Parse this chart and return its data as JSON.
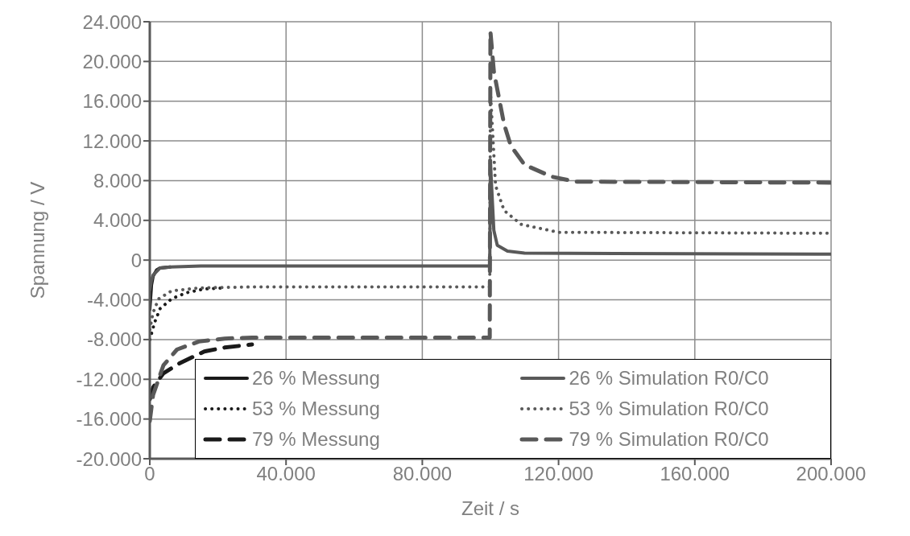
{
  "chart_data": {
    "type": "line",
    "xlabel": "Zeit / s",
    "ylabel": "Spannung / V",
    "xlim": [
      0,
      200000
    ],
    "ylim": [
      -20000,
      24000
    ],
    "xticks": [
      {
        "value": 0,
        "label": "0"
      },
      {
        "value": 40000,
        "label": "40.000"
      },
      {
        "value": 80000,
        "label": "80.000"
      },
      {
        "value": 120000,
        "label": "120.000"
      },
      {
        "value": 160000,
        "label": "160.000"
      },
      {
        "value": 200000,
        "label": "200.000"
      }
    ],
    "yticks": [
      {
        "value": -20000,
        "label": "-20.000"
      },
      {
        "value": -16000,
        "label": "-16.000"
      },
      {
        "value": -12000,
        "label": "-12.000"
      },
      {
        "value": -8000,
        "label": "-8.000"
      },
      {
        "value": -4000,
        "label": "-4.000"
      },
      {
        "value": 0,
        "label": "0"
      },
      {
        "value": 4000,
        "label": "4.000"
      },
      {
        "value": 8000,
        "label": "8.000"
      },
      {
        "value": 12000,
        "label": "12.000"
      },
      {
        "value": 16000,
        "label": "16.000"
      },
      {
        "value": 20000,
        "label": "20.000"
      },
      {
        "value": 24000,
        "label": "24.000"
      }
    ],
    "grid": true,
    "legend": "bottom right",
    "marker": "none",
    "series": [
      {
        "name": "26 % Messung",
        "color": "#1a1a1a",
        "line_style": "solid",
        "x": [
          0,
          500,
          1000,
          2000,
          3000,
          6000
        ],
        "values": [
          -5000,
          -2500,
          -1600,
          -1000,
          -800,
          -700
        ]
      },
      {
        "name": "53 % Messung",
        "color": "#1a1a1a",
        "line_style": "dotted",
        "x": [
          0,
          1400,
          3000,
          6400,
          10600,
          16000,
          22000
        ],
        "values": [
          -8000,
          -6300,
          -4900,
          -3900,
          -3300,
          -2900,
          -2800
        ]
      },
      {
        "name": "79 % Messung",
        "color": "#1a1a1a",
        "line_style": "dashed",
        "x": [
          0,
          1000,
          4000,
          8700,
          16000,
          22000,
          30000
        ],
        "values": [
          -14000,
          -12800,
          -11400,
          -10400,
          -9200,
          -8800,
          -8500
        ]
      },
      {
        "name": "26 % Simulation R0/C0",
        "color": "#595959",
        "line_style": "solid",
        "x": [
          0,
          500,
          1000,
          3000,
          6000,
          15000,
          99800,
          100000,
          101000,
          102000,
          105000,
          110000,
          200000
        ],
        "values": [
          -3000,
          -2000,
          -1500,
          -800,
          -700,
          -600,
          -600,
          9800,
          3000,
          1500,
          900,
          700,
          600
        ]
      },
      {
        "name": "53 % Simulation R0/C0",
        "color": "#595959",
        "line_style": "dotted",
        "x": [
          0,
          950,
          2600,
          6400,
          14400,
          30000,
          99800,
          100000,
          101500,
          104000,
          109000,
          120000,
          200000
        ],
        "values": [
          -7000,
          -5300,
          -3900,
          -3100,
          -2800,
          -2700,
          -2700,
          17000,
          7500,
          5000,
          3600,
          2800,
          2700
        ]
      },
      {
        "name": "79 % Simulation R0/C0",
        "color": "#595959",
        "line_style": "dashed",
        "x": [
          0,
          950,
          4000,
          8000,
          14400,
          22000,
          30000,
          99800,
          100000,
          101000,
          104000,
          106000,
          110000,
          118000,
          125000,
          200000
        ],
        "values": [
          -16200,
          -13600,
          -10600,
          -9000,
          -8200,
          -7900,
          -7800,
          -7800,
          23000,
          19000,
          13700,
          11500,
          9600,
          8400,
          7900,
          7800
        ]
      }
    ]
  }
}
